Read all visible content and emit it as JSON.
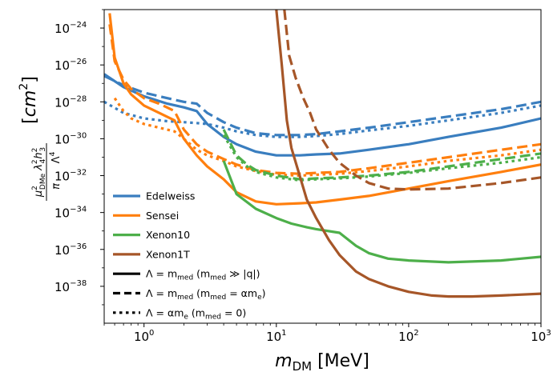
{
  "chart_data": {
    "type": "line",
    "title": "",
    "xlabel": "m_DM [MeV]",
    "ylabel": "μ²_DMe λ²₄h²₃ / (π Λ⁴)  [cm²]",
    "xscale": "log",
    "yscale": "log",
    "xlim": [
      0.5,
      1000
    ],
    "ylim": [
      1e-40,
      1e-23
    ],
    "x_ticks": [
      {
        "value": 1,
        "base": "10",
        "exp": "0"
      },
      {
        "value": 10,
        "base": "10",
        "exp": "1"
      },
      {
        "value": 100,
        "base": "10",
        "exp": "2"
      },
      {
        "value": 1000,
        "base": "10",
        "exp": "3"
      }
    ],
    "y_ticks": [
      {
        "value": -24,
        "base": "10",
        "exp": "−24"
      },
      {
        "value": -26,
        "base": "10",
        "exp": "−26"
      },
      {
        "value": -28,
        "base": "10",
        "exp": "−28"
      },
      {
        "value": -30,
        "base": "10",
        "exp": "−30"
      },
      {
        "value": -32,
        "base": "10",
        "exp": "−32"
      },
      {
        "value": -34,
        "base": "10",
        "exp": "−34"
      },
      {
        "value": -36,
        "base": "10",
        "exp": "−36"
      },
      {
        "value": -38,
        "base": "10",
        "exp": "−38"
      }
    ],
    "colors": {
      "Edelweiss": "#3a7ebf",
      "Sensei": "#ff7f0e",
      "Xenon10": "#4daf4a",
      "Xenon1T": "#a65628"
    },
    "legend": {
      "placement": "lower-left",
      "experiments": [
        "Edelweiss",
        "Sensei",
        "Xenon10",
        "Xenon1T"
      ],
      "styles": [
        {
          "style": "solid",
          "lhs": "Λ = m",
          "sub": "med",
          "cond_open": " (m",
          "cond_sub": "med",
          "cond_rest": " ≫ |q|)"
        },
        {
          "style": "dashed",
          "lhs": "Λ = m",
          "sub": "med",
          "cond_open": " (m",
          "cond_sub": "med",
          "cond_rest": " = αm",
          "cond_tail_sub": "e",
          "cond_close": ")"
        },
        {
          "style": "dotted",
          "lhs": "Λ = αm",
          "sub": "e",
          "cond_open": "   (m",
          "cond_sub": "med",
          "cond_rest": " = 0)"
        }
      ]
    },
    "series": [
      {
        "name": "Edelweiss",
        "style": "solid",
        "x": [
          0.5,
          0.7,
          1.0,
          1.5,
          2.0,
          2.5,
          3.0,
          4.0,
          5.0,
          7.0,
          10.0,
          15.0,
          20.0,
          30.0,
          50.0,
          100.0,
          200.0,
          500.0,
          1000.0
        ],
        "log10_y": [
          -26.5,
          -27.2,
          -27.7,
          -28.1,
          -28.3,
          -28.5,
          -29.2,
          -29.9,
          -30.3,
          -30.7,
          -30.9,
          -30.9,
          -30.85,
          -30.8,
          -30.6,
          -30.3,
          -29.9,
          -29.4,
          -28.9
        ]
      },
      {
        "name": "Edelweiss",
        "style": "dashed",
        "x": [
          0.5,
          0.7,
          1.0,
          1.5,
          2.0,
          2.5,
          3.0,
          4.0,
          5.0,
          7.0,
          10.0,
          15.0,
          20.0,
          30.0,
          50.0,
          100.0,
          200.0,
          500.0,
          1000.0
        ],
        "log10_y": [
          -26.6,
          -27.1,
          -27.5,
          -27.8,
          -28.0,
          -28.1,
          -28.6,
          -29.1,
          -29.4,
          -29.7,
          -29.8,
          -29.8,
          -29.75,
          -29.6,
          -29.4,
          -29.1,
          -28.8,
          -28.4,
          -28.0
        ]
      },
      {
        "name": "Edelweiss",
        "style": "dotted",
        "x": [
          0.5,
          0.7,
          1.0,
          1.5,
          2.0,
          2.5,
          3.0,
          4.0,
          5.0,
          7.0,
          10.0,
          15.0,
          20.0,
          30.0,
          50.0,
          100.0,
          200.0,
          500.0,
          1000.0
        ],
        "log10_y": [
          -28.0,
          -28.6,
          -28.9,
          -29.05,
          -29.1,
          -29.15,
          -29.2,
          -29.4,
          -29.6,
          -29.8,
          -29.9,
          -29.9,
          -29.85,
          -29.75,
          -29.55,
          -29.3,
          -29.0,
          -28.6,
          -28.2
        ]
      },
      {
        "name": "Sensei",
        "style": "solid",
        "x": [
          0.55,
          0.6,
          0.7,
          0.8,
          1.0,
          1.3,
          1.7,
          2.0,
          2.5,
          3.0,
          4.0,
          5.0,
          7.0,
          10.0,
          15.0,
          20.0,
          30.0,
          50.0,
          100.0,
          200.0,
          500.0,
          1000.0
        ],
        "log10_y": [
          -23.2,
          -25.6,
          -27.0,
          -27.6,
          -28.2,
          -28.6,
          -29.0,
          -30.0,
          -30.9,
          -31.5,
          -32.2,
          -32.9,
          -33.4,
          -33.55,
          -33.5,
          -33.45,
          -33.3,
          -33.1,
          -32.7,
          -32.3,
          -31.8,
          -31.4
        ]
      },
      {
        "name": "Sensei",
        "style": "dashed",
        "x": [
          0.55,
          0.6,
          0.7,
          0.8,
          1.0,
          1.3,
          1.7,
          2.0,
          2.5,
          3.0,
          4.0,
          5.0,
          7.0,
          10.0,
          15.0,
          20.0,
          30.0,
          50.0,
          100.0,
          200.0,
          500.0,
          1000.0
        ],
        "log10_y": [
          -23.8,
          -25.8,
          -26.8,
          -27.3,
          -27.8,
          -28.1,
          -28.5,
          -29.5,
          -30.3,
          -30.7,
          -31.1,
          -31.4,
          -31.7,
          -31.85,
          -31.9,
          -31.85,
          -31.8,
          -31.6,
          -31.3,
          -31.0,
          -30.6,
          -30.3
        ]
      },
      {
        "name": "Sensei",
        "style": "dotted",
        "x": [
          0.6,
          0.7,
          0.8,
          1.0,
          1.3,
          1.7,
          2.0,
          2.5,
          3.0,
          4.0,
          5.0,
          7.0,
          10.0,
          15.0,
          20.0,
          30.0,
          50.0,
          100.0,
          200.0,
          500.0,
          1000.0
        ],
        "log10_y": [
          -27.8,
          -28.5,
          -28.9,
          -29.2,
          -29.4,
          -29.6,
          -30.0,
          -30.6,
          -30.9,
          -31.2,
          -31.5,
          -31.75,
          -31.95,
          -32.0,
          -31.95,
          -31.9,
          -31.75,
          -31.5,
          -31.2,
          -30.9,
          -30.6
        ]
      },
      {
        "name": "Xenon10",
        "style": "solid",
        "x": [
          4.0,
          5.0,
          7.0,
          10.0,
          13.0,
          17.0,
          20.0,
          30.0,
          40.0,
          50.0,
          70.0,
          100.0,
          200.0,
          500.0,
          1000.0
        ],
        "log10_y": [
          -31.2,
          -33.0,
          -33.8,
          -34.3,
          -34.6,
          -34.8,
          -34.9,
          -35.1,
          -35.8,
          -36.2,
          -36.5,
          -36.6,
          -36.7,
          -36.6,
          -36.4
        ]
      },
      {
        "name": "Xenon10",
        "style": "dashed",
        "x": [
          4.0,
          5.0,
          6.0,
          7.0,
          10.0,
          15.0,
          20.0,
          30.0,
          50.0,
          100.0,
          200.0,
          500.0,
          1000.0
        ],
        "log10_y": [
          -29.5,
          -30.9,
          -31.4,
          -31.7,
          -32.0,
          -32.2,
          -32.15,
          -32.1,
          -32.0,
          -31.8,
          -31.5,
          -31.1,
          -30.8
        ]
      },
      {
        "name": "Xenon10",
        "style": "dotted",
        "x": [
          4.0,
          5.0,
          6.0,
          7.0,
          10.0,
          15.0,
          20.0,
          30.0,
          50.0,
          100.0,
          200.0,
          500.0,
          1000.0
        ],
        "log10_y": [
          -29.8,
          -31.0,
          -31.5,
          -31.8,
          -32.1,
          -32.25,
          -32.2,
          -32.15,
          -32.05,
          -31.85,
          -31.6,
          -31.3,
          -31.0
        ]
      },
      {
        "name": "Xenon1T",
        "style": "solid",
        "x": [
          10.0,
          11.0,
          12.0,
          13.0,
          15.0,
          17.0,
          20.0,
          25.0,
          30.0,
          40.0,
          50.0,
          70.0,
          100.0,
          150.0,
          200.0,
          300.0,
          500.0,
          1000.0
        ],
        "log10_y": [
          -23.0,
          -26.0,
          -29.0,
          -30.5,
          -32.0,
          -33.3,
          -34.3,
          -35.5,
          -36.3,
          -37.2,
          -37.6,
          -38.0,
          -38.3,
          -38.5,
          -38.55,
          -38.55,
          -38.5,
          -38.4
        ]
      },
      {
        "name": "Xenon1T",
        "style": "dashed",
        "x": [
          11.5,
          12.5,
          14.0,
          16.0,
          18.0,
          20.0,
          25.0,
          30.0,
          40.0,
          50.0,
          70.0,
          100.0,
          200.0,
          500.0,
          1000.0
        ],
        "log10_y": [
          -23.0,
          -25.5,
          -26.7,
          -27.8,
          -28.6,
          -29.5,
          -30.6,
          -31.3,
          -32.0,
          -32.4,
          -32.7,
          -32.75,
          -32.7,
          -32.4,
          -32.1
        ]
      }
    ]
  }
}
